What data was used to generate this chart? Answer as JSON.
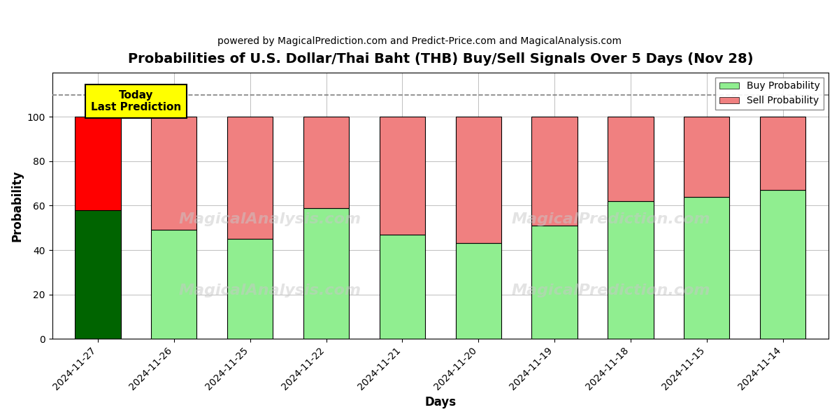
{
  "title": "Probabilities of U.S. Dollar/Thai Baht (THB) Buy/Sell Signals Over 5 Days (Nov 28)",
  "subtitle": "powered by MagicalPrediction.com and Predict-Price.com and MagicalAnalysis.com",
  "xlabel": "Days",
  "ylabel": "Probability",
  "dates": [
    "2024-11-27",
    "2024-11-26",
    "2024-11-25",
    "2024-11-22",
    "2024-11-21",
    "2024-11-20",
    "2024-11-19",
    "2024-11-18",
    "2024-11-15",
    "2024-11-14"
  ],
  "buy_values": [
    58,
    49,
    45,
    59,
    47,
    43,
    51,
    62,
    64,
    67
  ],
  "sell_values": [
    42,
    51,
    55,
    41,
    53,
    57,
    49,
    38,
    36,
    33
  ],
  "today_buy_color": "#006400",
  "today_sell_color": "#FF0000",
  "buy_color": "#90EE90",
  "sell_color": "#F08080",
  "today_annotation": "Today\nLast Prediction",
  "annotation_bg_color": "#FFFF00",
  "ylim": [
    0,
    120
  ],
  "dashed_line_y": 110,
  "legend_buy": "Buy Probability",
  "legend_sell": "Sell Probability",
  "figsize": [
    12,
    6
  ],
  "dpi": 100,
  "bar_width": 0.6
}
